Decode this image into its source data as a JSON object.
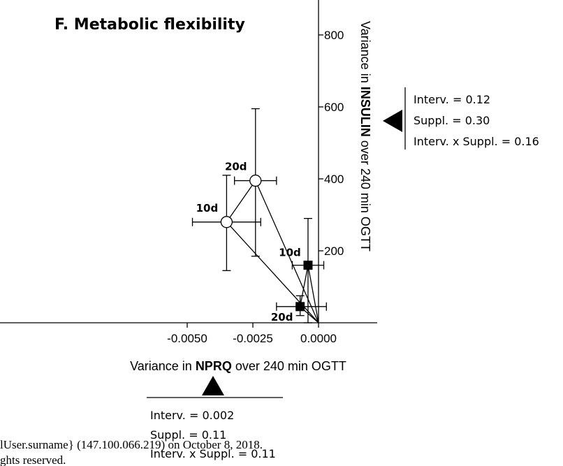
{
  "title": "F.  Metabolic flexibility",
  "chart_data": {
    "type": "scatter",
    "title": "F.  Metabolic flexibility",
    "x_axis": {
      "label_parts": [
        "Variance in ",
        "NPRQ",
        " over 240 min OGTT"
      ],
      "range": [
        -0.0055,
        0.0012
      ],
      "ticks": [
        -0.005,
        -0.0025,
        0.0
      ],
      "tick_labels": [
        "-0.0050",
        "-0.0025",
        "0.0000"
      ]
    },
    "y_axis": {
      "label_parts": [
        "Variance in ",
        "INSULIN",
        " over 240 min OGTT"
      ],
      "range": [
        0,
        900
      ],
      "ticks": [
        200,
        400,
        600,
        800
      ],
      "tick_labels": [
        "200",
        "400",
        "600",
        "800"
      ]
    },
    "series": [
      {
        "marker": "open-circle",
        "points": [
          {
            "label": "10d",
            "x": -0.0035,
            "y": 280,
            "x_err_low": -0.0048,
            "x_err_high": -0.0022,
            "y_err_low": 145,
            "y_err_high": 410
          },
          {
            "label": "20d",
            "x": -0.0024,
            "y": 395,
            "x_err_low": -0.0032,
            "x_err_high": -0.0016,
            "y_err_low": 185,
            "y_err_high": 595
          }
        ]
      },
      {
        "marker": "filled-square",
        "points": [
          {
            "label": "10d",
            "x": -0.0004,
            "y": 160,
            "x_err_low": -0.001,
            "x_err_high": 0.0002,
            "y_err_low": 0,
            "y_err_high": 290
          },
          {
            "label": "20d",
            "x": -0.0007,
            "y": 45,
            "x_err_low": -0.0016,
            "x_err_high": 0.0003,
            "y_err_low": 20,
            "y_err_high": 75
          }
        ]
      }
    ],
    "connectors": [
      [
        [
          0.0,
          0.0
        ],
        [
          -0.0035,
          280
        ],
        [
          -0.0024,
          395
        ],
        [
          0.0,
          0.0
        ]
      ],
      [
        [
          0.0,
          0.0
        ],
        [
          -0.0004,
          160
        ],
        [
          -0.0007,
          45
        ],
        [
          0.0,
          0.0
        ]
      ]
    ],
    "annotations": {
      "insulin_stats": [
        "Interv. = 0.12",
        "Suppl. = 0.30",
        "Interv. x Suppl. = 0.16"
      ],
      "nprq_stats": [
        "Interv. = 0.002",
        "Suppl. = 0.11",
        "Interv. x Suppl. = 0.11"
      ]
    }
  },
  "footer": {
    "line1": "lUser.surname} (147.100.066.219) on October 8, 2018.",
    "line2": "ghts reserved."
  }
}
